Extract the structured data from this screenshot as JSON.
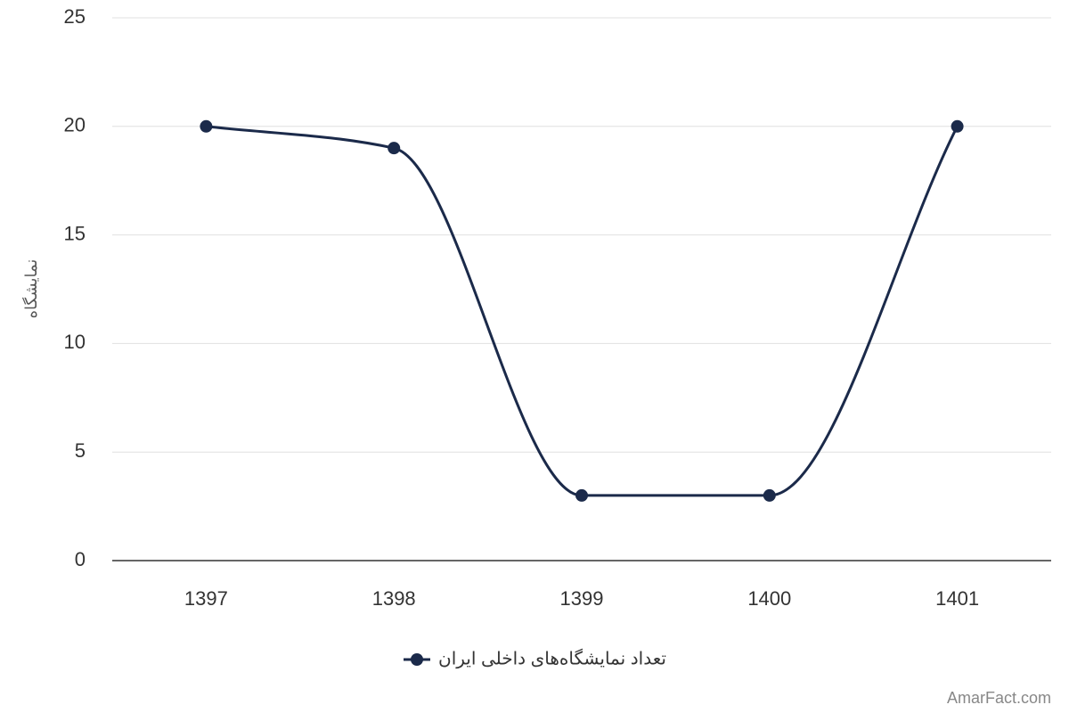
{
  "chart_data": {
    "type": "line",
    "y_label": "نمایشگاه",
    "categories": [
      "1397",
      "1398",
      "1399",
      "1400",
      "1401"
    ],
    "series": [
      {
        "name": "تعداد نمایشگاه‌های داخلی ایران",
        "color": "#1b2a4a",
        "values": [
          20,
          19,
          3,
          3,
          20
        ]
      }
    ],
    "ylim": [
      0,
      25
    ],
    "yticks": [
      0,
      5,
      10,
      15,
      20,
      25
    ],
    "grid": true,
    "smooth": true,
    "legend": "bottom",
    "credit": "AmarFact.com"
  }
}
